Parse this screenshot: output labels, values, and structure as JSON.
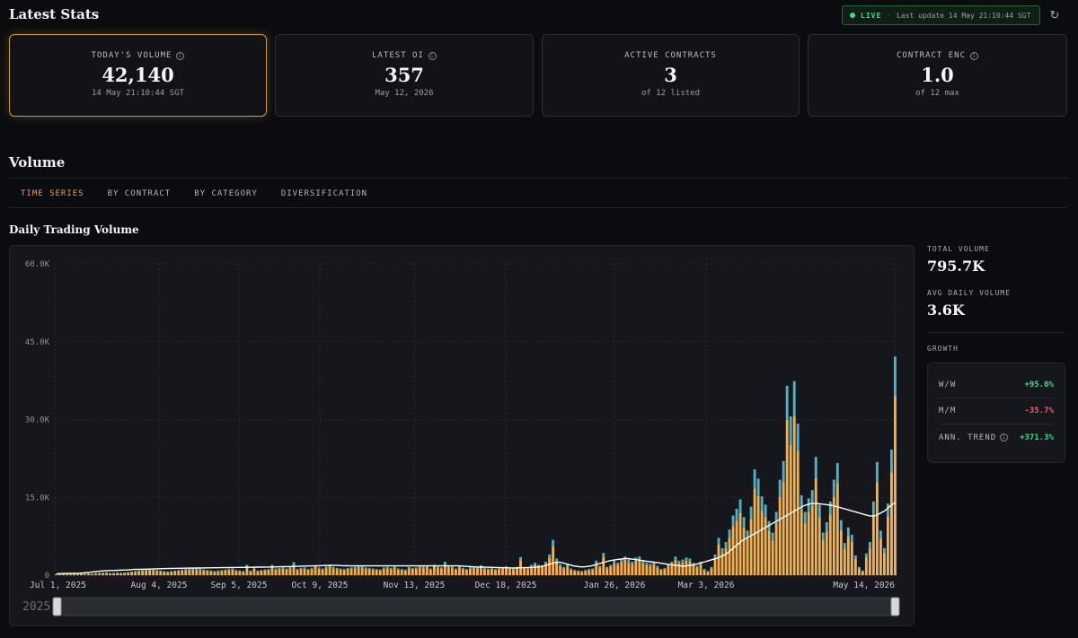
{
  "header": {
    "title": "Latest Stats",
    "live_label": "LIVE",
    "separator": "·",
    "last_update": "Last update 14 May 21:10:44 SGT",
    "refresh_icon": "refresh-icon"
  },
  "stats": [
    {
      "label": "TODAY'S VOLUME",
      "value": "42,140",
      "sub": "14 May 21:10:44 SGT",
      "info": true,
      "active": true
    },
    {
      "label": "LATEST OI",
      "value": "357",
      "sub": "May 12, 2026",
      "info": true,
      "active": false
    },
    {
      "label": "ACTIVE CONTRACTS",
      "value": "3",
      "sub": "of 12 listed",
      "info": false,
      "active": false
    },
    {
      "label": "CONTRACT ENC",
      "value": "1.0",
      "sub": "of 12 max",
      "info": true,
      "active": false
    }
  ],
  "volume": {
    "title": "Volume",
    "tabs": [
      "TIME SERIES",
      "BY CONTRACT",
      "BY CATEGORY",
      "DIVERSIFICATION"
    ],
    "active_tab": "TIME SERIES",
    "chart_title": "Daily Trading Volume"
  },
  "side": {
    "total_volume_label": "TOTAL VOLUME",
    "total_volume": "795.7K",
    "avg_daily_label": "AVG DAILY VOLUME",
    "avg_daily": "3.6K",
    "growth_label": "GROWTH",
    "growth": [
      {
        "label": "W/W",
        "value": "+95.0%",
        "trend": "pos"
      },
      {
        "label": "M/M",
        "value": "-35.7%",
        "trend": "neg"
      },
      {
        "label": "ANN. TREND",
        "value": "+371.3%",
        "trend": "pos",
        "info": true
      }
    ]
  },
  "colors": {
    "accent": "#e6a23c",
    "bar_primary": "#f5b04a",
    "bar_secondary": "#4ab3c7",
    "positive": "#3ddc84",
    "negative": "#f0605a"
  },
  "chart_data": {
    "type": "bar",
    "y_ticks": [
      "0",
      "15.0K",
      "30.0K",
      "45.0K",
      "60.0K"
    ],
    "x_ticks": [
      "Jul 1, 2025",
      "Aug 4, 2025",
      "Sep 5, 2025",
      "Oct 9, 2025",
      "Nov 13, 2025",
      "Dec 18, 2025",
      "Jan 26, 2026",
      "Mar 3, 2026",
      "May 14, 2026"
    ],
    "ylim": [
      0,
      60000
    ],
    "grid": true,
    "slider_label": "2025",
    "series_volume": [
      200,
      250,
      300,
      250,
      200,
      300,
      350,
      400,
      300,
      350,
      300,
      400,
      450,
      500,
      550,
      400,
      450,
      500,
      450,
      500,
      600,
      700,
      800,
      900,
      1000,
      1100,
      1200,
      1100,
      1000,
      900,
      800,
      700,
      800,
      900,
      1000,
      1100,
      1200,
      1300,
      1400,
      1300,
      1200,
      1100,
      1000,
      900,
      800,
      900,
      1000,
      1100,
      1200,
      1300,
      1000,
      900,
      800,
      2000,
      900,
      1500,
      900,
      1000,
      1100,
      1200,
      2000,
      1300,
      1400,
      1500,
      1300,
      1600,
      2500,
      1200,
      1400,
      1500,
      1200,
      1400,
      1900,
      1500,
      1300,
      1700,
      2000,
      1600,
      1400,
      1300,
      1200,
      1400,
      1500,
      1600,
      1800,
      1700,
      1500,
      1400,
      1300,
      1200,
      1100,
      1500,
      1600,
      1400,
      1800,
      1300,
      1200,
      1100,
      1600,
      1400,
      1500,
      1800,
      1700,
      1900,
      1300,
      2000,
      1700,
      1500,
      2600,
      1900,
      1700,
      1300,
      1800,
      1400,
      1200,
      1500,
      1700,
      1600,
      1900,
      1400,
      1300,
      1500,
      1200,
      1400,
      1600,
      1700,
      1500,
      1300,
      1600,
      3500,
      1600,
      1400,
      2000,
      2400,
      2000,
      1900,
      2600,
      4000,
      6800,
      3200,
      2100,
      1600,
      2200,
      1300,
      1000,
      900,
      800,
      1000,
      1200,
      1300,
      2800,
      1800,
      4300,
      1600,
      2000,
      2800,
      2400,
      3200,
      3600,
      3000,
      2600,
      3400,
      3600,
      2800,
      2400,
      2200,
      2600,
      1800,
      1200,
      1400,
      2200,
      2600,
      3600,
      2800,
      3000,
      3400,
      3200,
      2400,
      1800,
      2600,
      1200,
      800,
      1600,
      4000,
      7200,
      5200,
      6400,
      8800,
      11500,
      12800,
      14600,
      11200,
      8600,
      13200,
      20400,
      18600,
      15200,
      13600,
      10400,
      8200,
      12200,
      18400,
      22000,
      36500,
      30600,
      37400,
      29200,
      15400,
      12200,
      14800,
      16400,
      22800,
      13600,
      8200,
      10200,
      14200,
      18400,
      21600,
      10600,
      6200,
      9200,
      7800,
      3800,
      1600,
      900,
      4200,
      6400,
      14200,
      21800,
      8600,
      5200,
      13800,
      24200,
      42140
    ],
    "series_trend": [
      300,
      300,
      320,
      330,
      340,
      360,
      380,
      420,
      480,
      560,
      640,
      720,
      800,
      850,
      880,
      900,
      920,
      950,
      980,
      1000,
      1050,
      1100,
      1120,
      1140,
      1160,
      1180,
      1200,
      1220,
      1240,
      1260,
      1280,
      1300,
      1320,
      1330,
      1340,
      1350,
      1360,
      1370,
      1380,
      1390,
      1400,
      1410,
      1420,
      1430,
      1440,
      1450,
      1460,
      1470,
      1480,
      1490,
      1500,
      1510,
      1520,
      1530,
      1540,
      1550,
      1560,
      1570,
      1580,
      1590,
      1600,
      1620,
      1640,
      1660,
      1680,
      1700,
      1720,
      1740,
      1760,
      1780,
      1800,
      1820,
      1840,
      1860,
      1880,
      1900,
      1880,
      1860,
      1840,
      1820,
      1800,
      1800,
      1800,
      1800,
      1800,
      1800,
      1800,
      1800,
      1800,
      1800,
      1800,
      1800,
      1800,
      1800,
      1800,
      1800,
      1800,
      1800,
      1800,
      1800,
      1800,
      1800,
      1800,
      1800,
      1800,
      1800,
      1800,
      1800,
      1800,
      1800,
      1800,
      1750,
      1700,
      1650,
      1600,
      1580,
      1560,
      1540,
      1520,
      1500,
      1480,
      1460,
      1440,
      1420,
      1400,
      1400,
      1420,
      1440,
      1460,
      1480,
      1500,
      1550,
      1600,
      1800,
      2000,
      2200,
      2400,
      2500,
      2400,
      2200,
      2000,
      1800,
      1700,
      1600,
      1600,
      1700,
      1800,
      2000,
      2200,
      2400,
      2600,
      2800,
      2900,
      3000,
      3100,
      3200,
      3200,
      3100,
      3000,
      2900,
      2800,
      2700,
      2600,
      2500,
      2400,
      2300,
      2200,
      2100,
      2000,
      1900,
      1800,
      1700,
      1800,
      1900,
      2000,
      2200,
      2400,
      2600,
      2800,
      3000,
      3200,
      3500,
      3800,
      4200,
      4800,
      5400,
      6000,
      6600,
      7000,
      7400,
      7800,
      8200,
      8600,
      9000,
      9400,
      9800,
      10200,
      10600,
      11000,
      11400,
      11800,
      12200,
      12600,
      13000,
      13400,
      13600,
      13800,
      13800,
      13800,
      13700,
      13600,
      13500,
      13400,
      13200,
      13000,
      12800,
      12600,
      12400,
      12200,
      12000,
      11800,
      11600,
      11400,
      11400,
      11600,
      12000,
      12400,
      13000,
      13600,
      14000
    ]
  }
}
